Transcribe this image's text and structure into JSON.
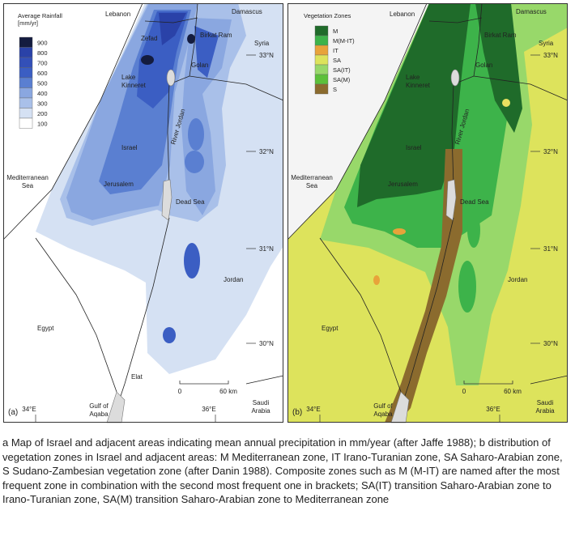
{
  "panel_a": {
    "label": "(a)",
    "legend_title": [
      "Average Rainfall",
      "[mm/yr]"
    ],
    "legend": [
      900,
      800,
      700,
      600,
      500,
      400,
      300,
      200,
      100
    ],
    "places": {
      "lebanon": "Lebanon",
      "damascus": "Damascus",
      "zefad": "Zefad",
      "birkat_ram": "Birkat Ram",
      "syria": "Syria",
      "golan": "Golan",
      "lake_kinneret": [
        "Lake",
        "Kinneret"
      ],
      "israel": "Israel",
      "mediterranean_sea": [
        "Mediterranean",
        "Sea"
      ],
      "jerusalem": "Jerusalem",
      "dead_sea": "Dead Sea",
      "river_jordan": "River Jordan",
      "jordan": "Jordan",
      "egypt": "Egypt",
      "elat": "Elat",
      "gulf_of_aqaba": [
        "Gulf of",
        "Aqaba"
      ],
      "saudi_arabia": [
        "Saudi",
        "Arabia"
      ]
    },
    "latitudes": [
      "33°N",
      "32°N",
      "31°N",
      "30°N"
    ],
    "longitudes": [
      "34°E",
      "36°E"
    ],
    "scale": [
      "0",
      "60 km"
    ]
  },
  "panel_b": {
    "label": "(b)",
    "legend_title": [
      "Vegetation Zones"
    ],
    "legend": [
      "M",
      "M(M-IT)",
      "IT",
      "SA",
      "SA(IT)",
      "SA(M)",
      "S"
    ],
    "places": {
      "lebanon": "Lebanon",
      "damascus": "Damascus",
      "birkat_ram": "Birkat Ram",
      "syria": "Syria",
      "golan": "Golan",
      "lake_kinneret": [
        "Lake",
        "Kinneret"
      ],
      "israel": "Israel",
      "mediterranean_sea": [
        "Mediterranean",
        "Sea"
      ],
      "jerusalem": "Jerusalem",
      "dead_sea": "Dead Sea",
      "river_jordan": "River Jordan",
      "jordan": "Jordan",
      "egypt": "Egypt",
      "gulf_of_aqaba": [
        "Gulf of",
        "Aqaba"
      ],
      "saudi_arabia": [
        "Saudi",
        "Arabia"
      ]
    },
    "latitudes": [
      "33°N",
      "32°N",
      "31°N",
      "30°N"
    ],
    "longitudes": [
      "34°E",
      "36°E"
    ],
    "scale": [
      "0",
      "60 km"
    ]
  },
  "caption": "a Map of Israel and adjacent areas indicating mean annual precipitation in mm/year (after Jaffe 1988); b distribution of vegetation zones in Israel and adjacent areas: M Mediterranean zone, IT Irano-Turanian zone, SA Saharo-Arabian zone, S Sudano-Zambesian vegetation zone (after Danin 1988). Composite zones such as M (M-IT) are named after the most frequent zone in combination with the second most frequent one in brackets; SA(IT) transition Saharo-Arabian zone to Irano-Turanian zone, SA(M) transition Saharo-Arabian zone to Mediterranean zone"
}
